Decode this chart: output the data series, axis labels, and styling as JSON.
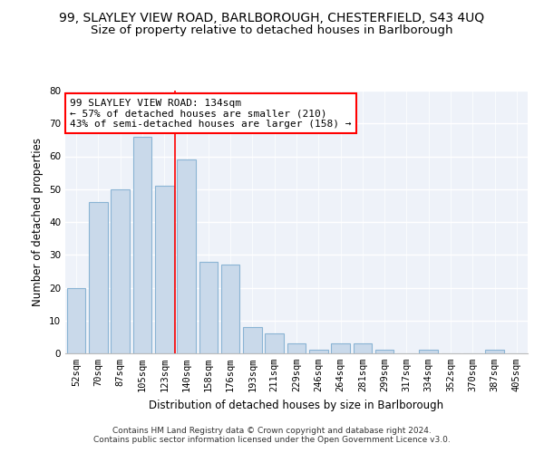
{
  "title_line1": "99, SLAYLEY VIEW ROAD, BARLBOROUGH, CHESTERFIELD, S43 4UQ",
  "title_line2": "Size of property relative to detached houses in Barlborough",
  "xlabel": "Distribution of detached houses by size in Barlborough",
  "ylabel": "Number of detached properties",
  "categories": [
    "52sqm",
    "70sqm",
    "87sqm",
    "105sqm",
    "123sqm",
    "140sqm",
    "158sqm",
    "176sqm",
    "193sqm",
    "211sqm",
    "229sqm",
    "246sqm",
    "264sqm",
    "281sqm",
    "299sqm",
    "317sqm",
    "334sqm",
    "352sqm",
    "370sqm",
    "387sqm",
    "405sqm"
  ],
  "values": [
    20,
    46,
    50,
    66,
    51,
    59,
    28,
    27,
    8,
    6,
    3,
    1,
    3,
    3,
    1,
    0,
    1,
    0,
    0,
    1,
    0
  ],
  "bar_color": "#c9d9ea",
  "bar_edge_color": "#8ab4d4",
  "vline_x": 4.5,
  "vline_color": "red",
  "annotation_text": "99 SLAYLEY VIEW ROAD: 134sqm\n← 57% of detached houses are smaller (210)\n43% of semi-detached houses are larger (158) →",
  "annotation_box_color": "white",
  "annotation_box_edge_color": "red",
  "ylim": [
    0,
    80
  ],
  "yticks": [
    0,
    10,
    20,
    30,
    40,
    50,
    60,
    70,
    80
  ],
  "plot_bg_color": "#eef2f9",
  "footer_text": "Contains HM Land Registry data © Crown copyright and database right 2024.\nContains public sector information licensed under the Open Government Licence v3.0.",
  "title_fontsize": 10,
  "subtitle_fontsize": 9.5,
  "axis_label_fontsize": 8.5,
  "tick_fontsize": 7.5,
  "annotation_fontsize": 8,
  "footer_fontsize": 6.5
}
